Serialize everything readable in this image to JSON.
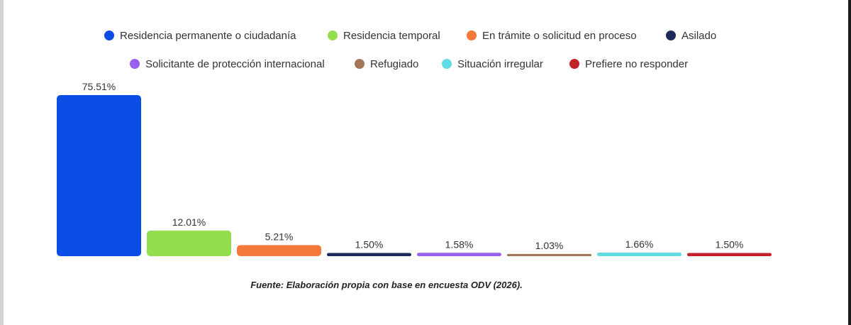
{
  "chart_data": {
    "type": "bar",
    "title": "",
    "xlabel": "",
    "ylabel": "",
    "ylim": [
      0,
      75.51
    ],
    "grid": false,
    "legend_position": "top",
    "categories": [
      "Residencia permanente o ciudadanía",
      "Residencia temporal",
      "En trámite o solicitud en proceso",
      "Asilado",
      "Solicitante de protección internacional",
      "Refugiado",
      "Situación irregular",
      "Prefiere no responder"
    ],
    "values": [
      75.51,
      12.01,
      5.21,
      1.5,
      1.58,
      1.03,
      1.66,
      1.5
    ],
    "data_labels": [
      "75.51%",
      "12.01%",
      "5.21%",
      "1.50%",
      "1.58%",
      "1.03%",
      "1.66%",
      "1.50%"
    ],
    "colors": [
      "#0b4ee6",
      "#93dd4f",
      "#f2793a",
      "#1e2a5a",
      "#9b5ff0",
      "#a3765a",
      "#5fdde3",
      "#c2202a"
    ]
  },
  "source_note": "Fuente: Elaboración propia con base en encuesta ODV (2026)."
}
